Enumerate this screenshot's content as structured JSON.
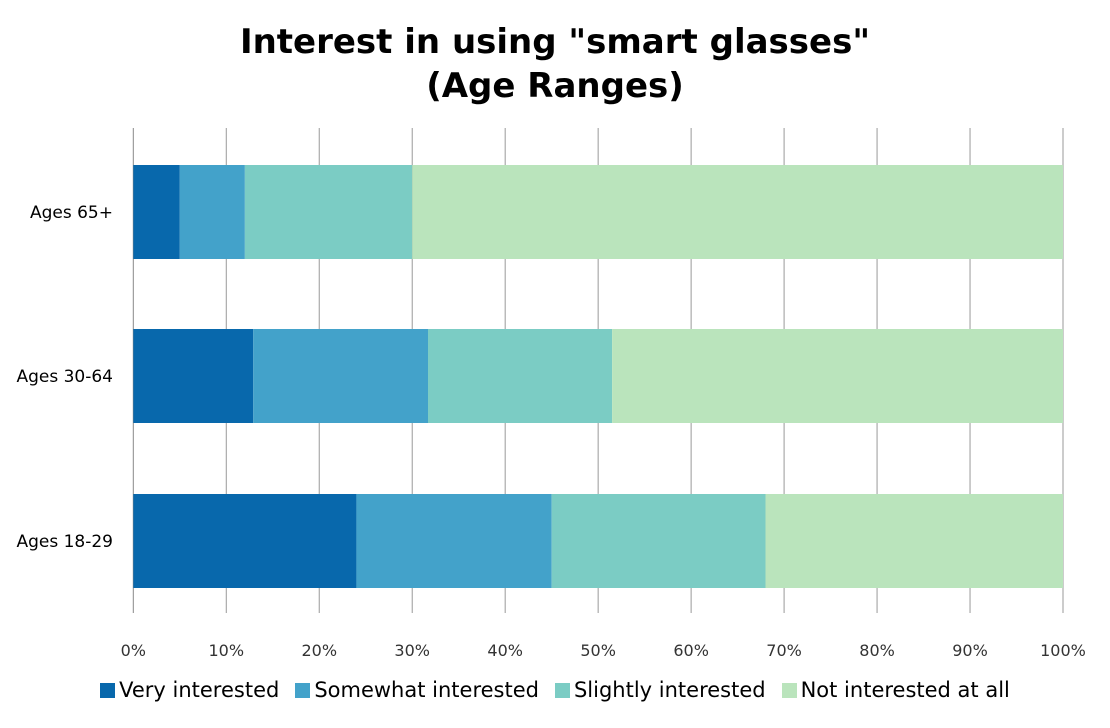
{
  "chart_data": {
    "type": "bar",
    "orientation": "horizontal",
    "stacked": "percent",
    "title": "Interest in using \"smart glasses\"",
    "subtitle": "(Age Ranges)",
    "categories": [
      "Ages 65+",
      "Ages 30-64",
      "Ages 18-29"
    ],
    "series": [
      {
        "name": "Very interested",
        "color": "#0868ac",
        "values": [
          5,
          12.9,
          24
        ]
      },
      {
        "name": "Somewhat interested",
        "color": "#43a2ca",
        "values": [
          7,
          18.8,
          21
        ]
      },
      {
        "name": "Slightly interested",
        "color": "#7bccc4",
        "values": [
          18,
          19.8,
          23
        ]
      },
      {
        "name": "Not interested at all",
        "color": "#bae4bc",
        "values": [
          70,
          48.5,
          32
        ]
      }
    ],
    "xlim": [
      0,
      100
    ],
    "xticks": [
      "0%",
      "10%",
      "20%",
      "30%",
      "40%",
      "50%",
      "60%",
      "70%",
      "80%",
      "90%",
      "100%"
    ],
    "grid": "vertical",
    "legend": "bottom"
  }
}
